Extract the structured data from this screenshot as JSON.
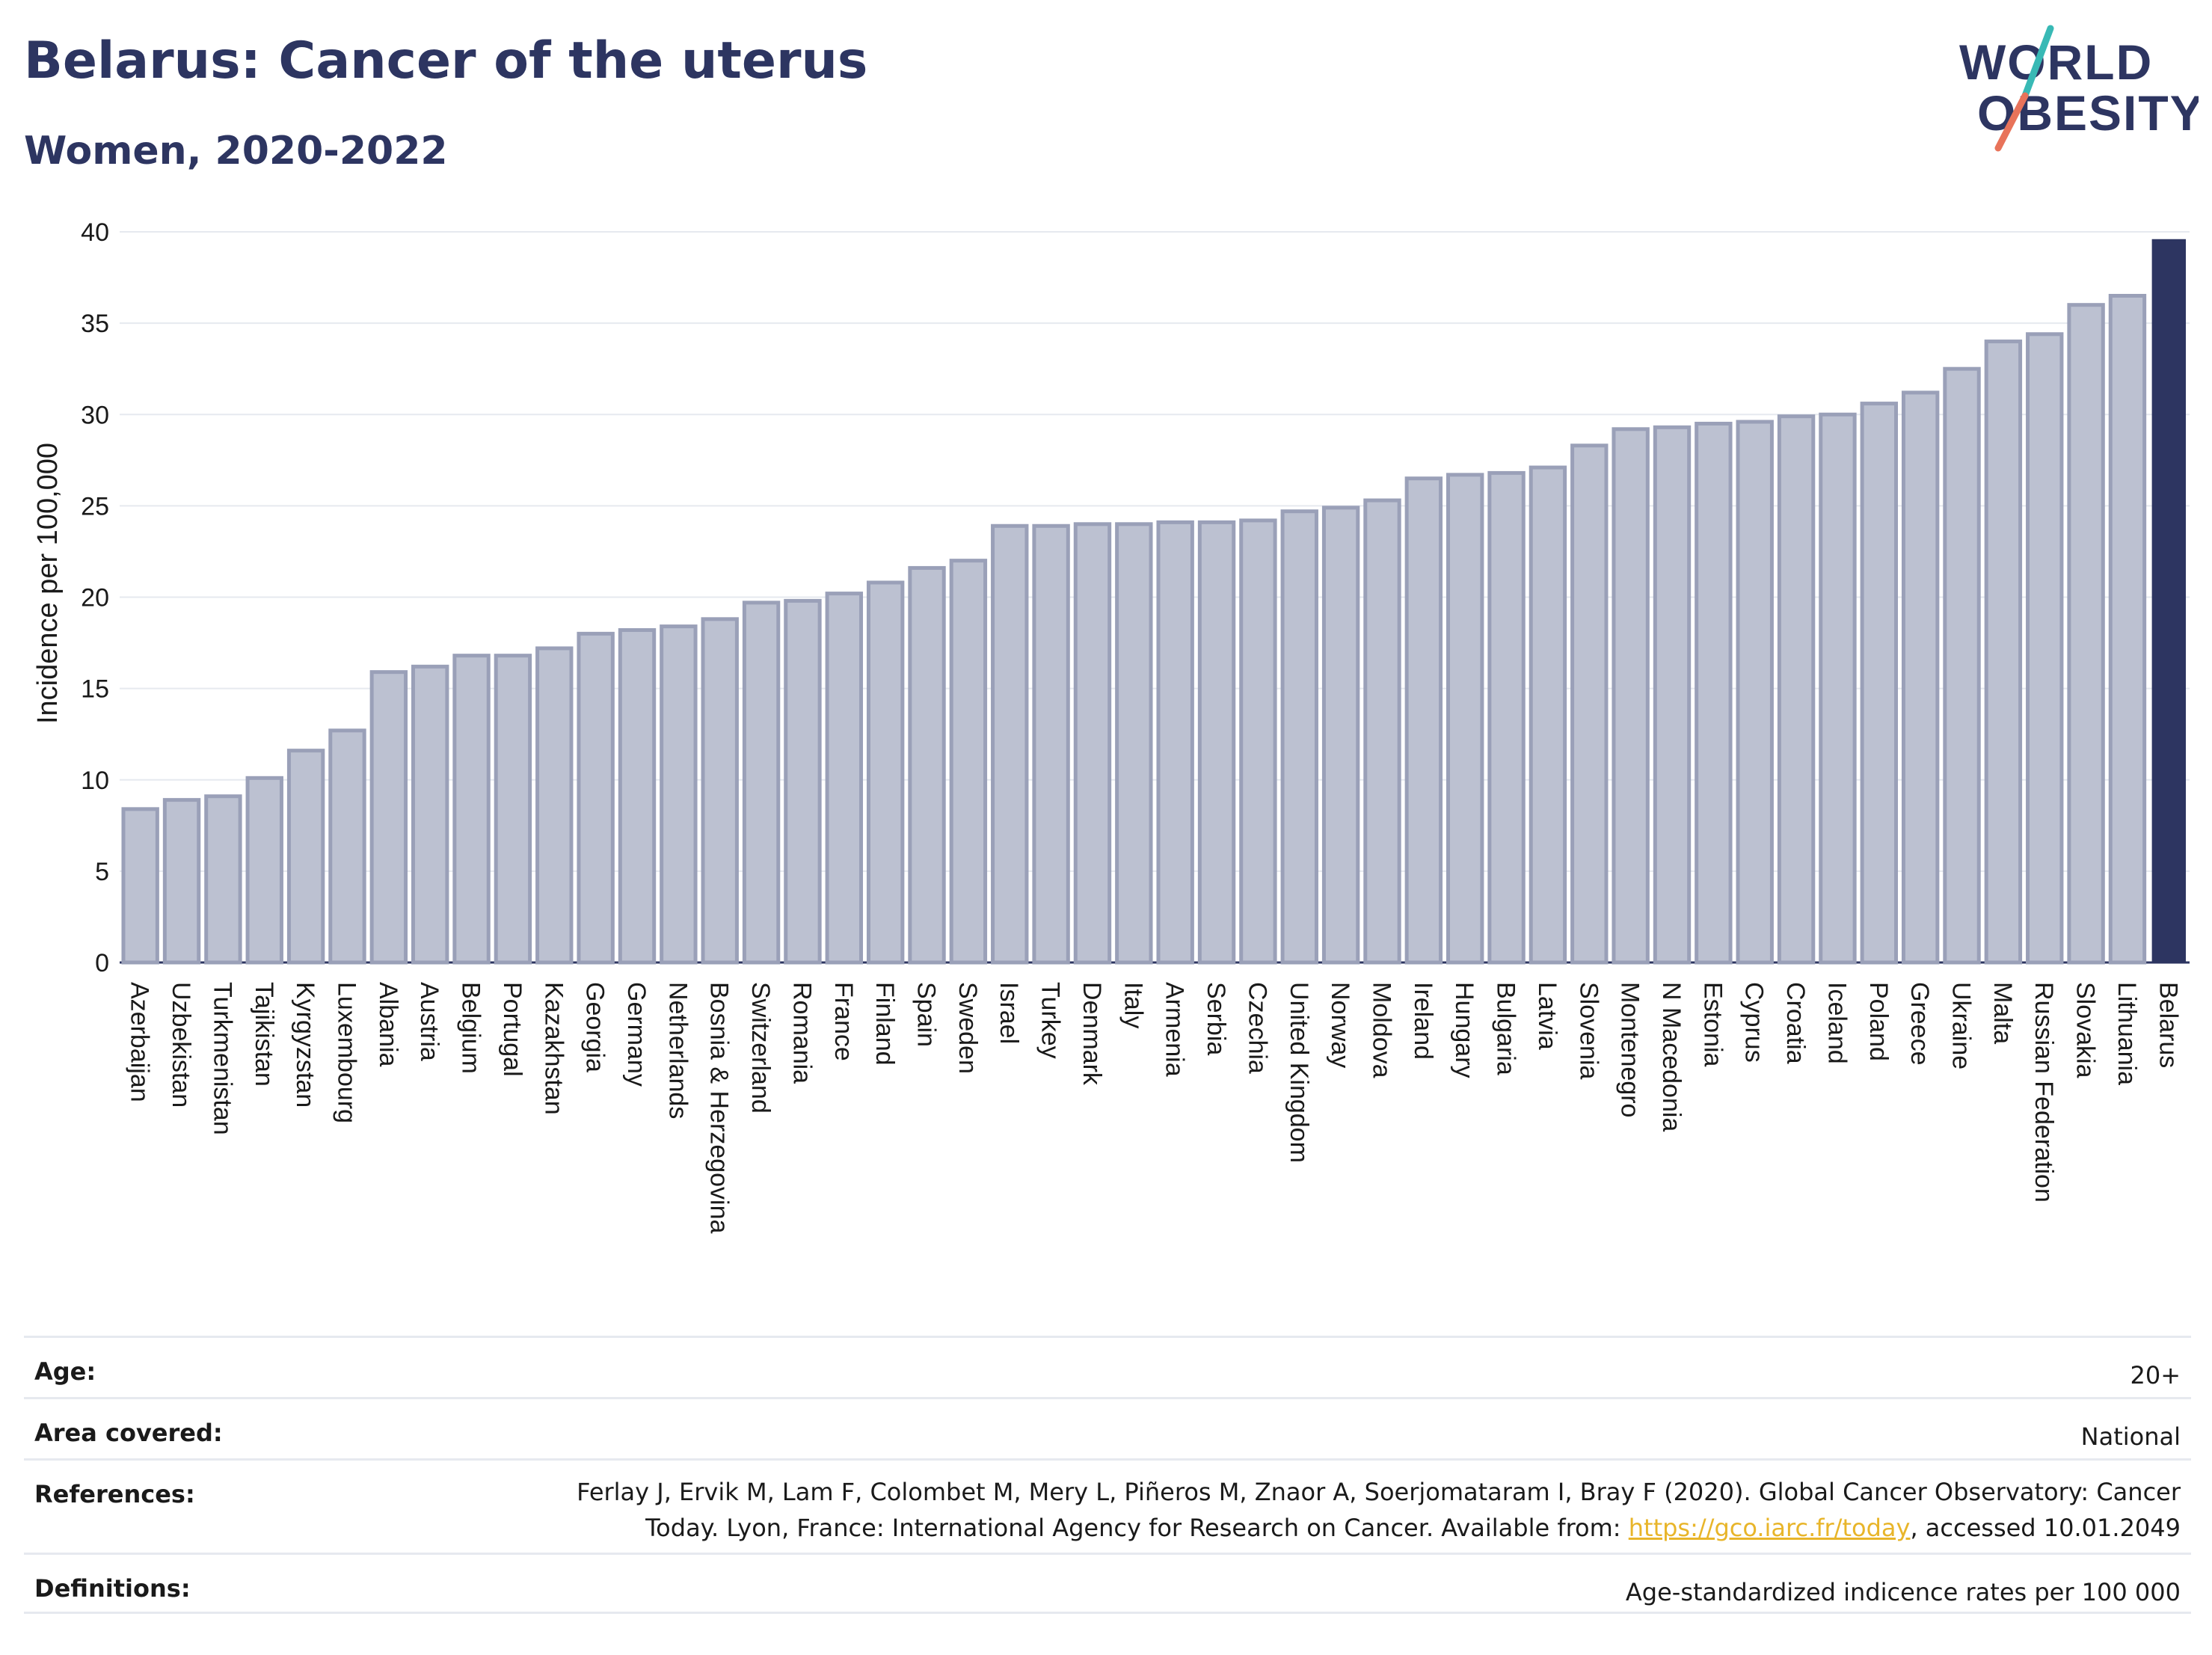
{
  "title": "Belarus: Cancer of the uterus",
  "subtitle": "Women, 2020-2022",
  "logo": {
    "line1": "WORLD",
    "line2": "OBESITY"
  },
  "colors": {
    "highlight_bar": "#2d3561",
    "other_bar": "#bcc1d1",
    "other_bar_border": "#9aa0b8",
    "title": "#2d3561",
    "grid": "#e6e9ef",
    "logo_teal": "#38b9b5",
    "logo_coral": "#e8735a",
    "link": "#e8b52a"
  },
  "chart_data": {
    "type": "bar",
    "title": "",
    "xlabel": "",
    "ylabel": "Incidence per 100,000",
    "ylim": [
      0,
      40
    ],
    "yticks": [
      0,
      5,
      10,
      15,
      20,
      25,
      30,
      35,
      40
    ],
    "grid": true,
    "highlight": "Belarus",
    "categories": [
      "Azerbaijan",
      "Uzbekistan",
      "Turkmenistan",
      "Tajikistan",
      "Kyrgyzstan",
      "Luxembourg",
      "Albania",
      "Austria",
      "Belgium",
      "Portugal",
      "Kazakhstan",
      "Georgia",
      "Germany",
      "Netherlands",
      "Bosnia & Herzegovina",
      "Switzerland",
      "Romania",
      "France",
      "Finland",
      "Spain",
      "Sweden",
      "Israel",
      "Turkey",
      "Denmark",
      "Italy",
      "Armenia",
      "Serbia",
      "Czechia",
      "United Kingdom",
      "Norway",
      "Moldova",
      "Ireland",
      "Hungary",
      "Bulgaria",
      "Latvia",
      "Slovenia",
      "Montenegro",
      "N Macedonia",
      "Estonia",
      "Cyprus",
      "Croatia",
      "Iceland",
      "Poland",
      "Greece",
      "Ukraine",
      "Malta",
      "Russian Federation",
      "Slovakia",
      "Lithuania",
      "Belarus"
    ],
    "values": [
      8.4,
      8.9,
      9.1,
      10.1,
      11.6,
      12.7,
      15.9,
      16.2,
      16.8,
      16.8,
      17.2,
      18.0,
      18.2,
      18.4,
      18.8,
      19.7,
      19.8,
      20.2,
      20.8,
      21.6,
      22.0,
      23.9,
      23.9,
      24.0,
      24.0,
      24.1,
      24.1,
      24.2,
      24.7,
      24.9,
      25.3,
      26.5,
      26.7,
      26.8,
      27.1,
      28.3,
      29.2,
      29.3,
      29.5,
      29.6,
      29.9,
      30.0,
      30.6,
      31.2,
      32.5,
      34.0,
      34.4,
      36.0,
      36.5,
      39.6
    ]
  },
  "meta": {
    "age_label": "Age:",
    "age_value": "20+",
    "area_label": "Area covered:",
    "area_value": "National",
    "references_label": "References:",
    "references_text": "Ferlay J, Ervik M, Lam F, Colombet M, Mery L, Piñeros M, Znaor A, Soerjomataram I, Bray F (2020). Global Cancer Observatory: Cancer Today. Lyon, France: International Agency for Research on Cancer. Available from: ",
    "references_link": "https://gco.iarc.fr/today",
    "references_suffix": ", accessed 10.01.2049",
    "definitions_label": "Definitions:",
    "definitions_value": "Age-standardized indicence rates per 100 000"
  }
}
